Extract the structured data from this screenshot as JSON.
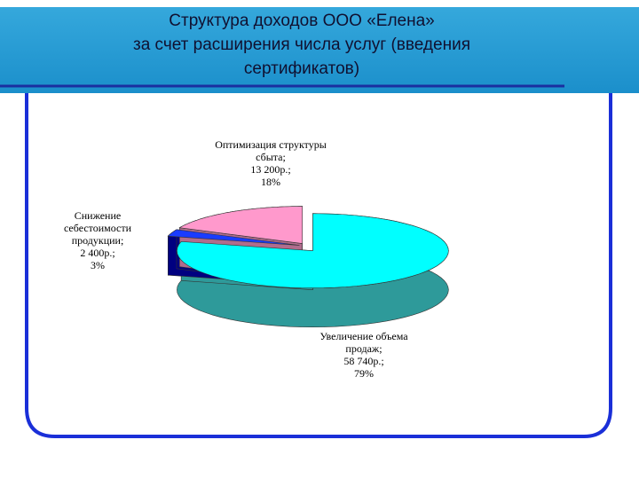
{
  "chart_data": {
    "type": "pie",
    "title": [
      "Структура доходов ООО «Елена»",
      "за счет расширения числа услуг (введения",
      "сертификатов)"
    ],
    "categories": [
      "Увеличение объема продаж;",
      "Снижение себестоимости продукции;",
      "Оптимизация структуры сбыта;"
    ],
    "values": [
      79,
      3,
      18
    ],
    "value_labels": [
      "79%",
      "3%",
      "18%"
    ],
    "amounts": [
      58740,
      2400,
      13200
    ],
    "amount_labels": [
      "58 740р.;",
      "2 400р.;",
      "13 200р.;"
    ],
    "colors": [
      "#00ffff",
      "#1a3cff",
      "#ff99cc"
    ],
    "side_colors": [
      "#2e9a9a",
      "#000080",
      "#b06d8d"
    ]
  }
}
